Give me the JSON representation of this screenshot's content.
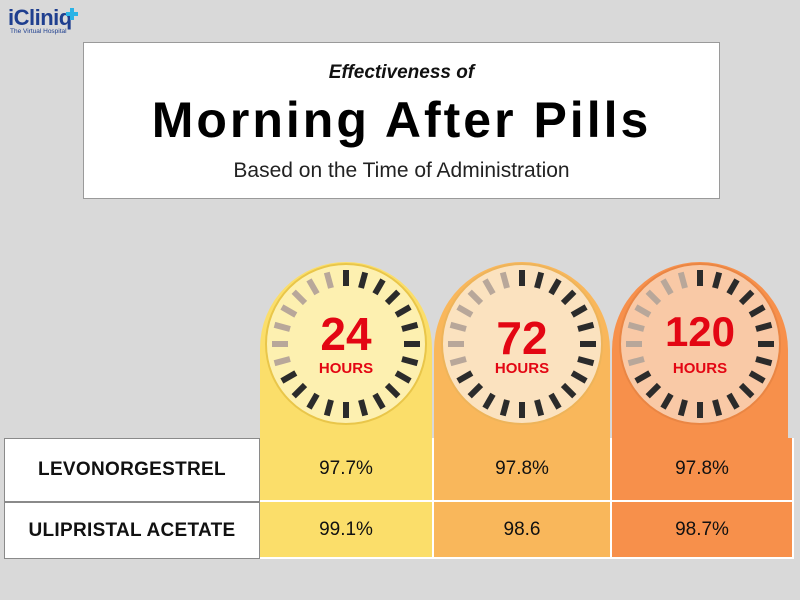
{
  "logo": {
    "name": "iCliniq",
    "tagline": "The Virtual Hospital"
  },
  "header": {
    "subtitle_top": "Effectiveness of",
    "title": "Morning After Pills",
    "subtitle_bottom": "Based on the Time of Administration"
  },
  "colors": {
    "col_24": "#fbde6a",
    "col_72": "#f9b75b",
    "col_120": "#f7904b",
    "number_red": "#e30613",
    "tick_dark": "#2b2b2b"
  },
  "chart_data": {
    "type": "table",
    "title": "Effectiveness of Morning After Pills",
    "subtitle": "Based on the Time of Administration",
    "columns": [
      {
        "number": "24",
        "unit": "HOURS"
      },
      {
        "number": "72",
        "unit": "HOURS"
      },
      {
        "number": "120",
        "unit": "HOURS"
      }
    ],
    "rows": [
      {
        "label": "LEVONORGESTREL",
        "values": [
          "97.7%",
          "97.8%",
          "97.8%"
        ]
      },
      {
        "label": "ULIPRISTAL ACETATE",
        "values": [
          "99.1%",
          "98.6",
          "98.7%"
        ]
      }
    ]
  }
}
